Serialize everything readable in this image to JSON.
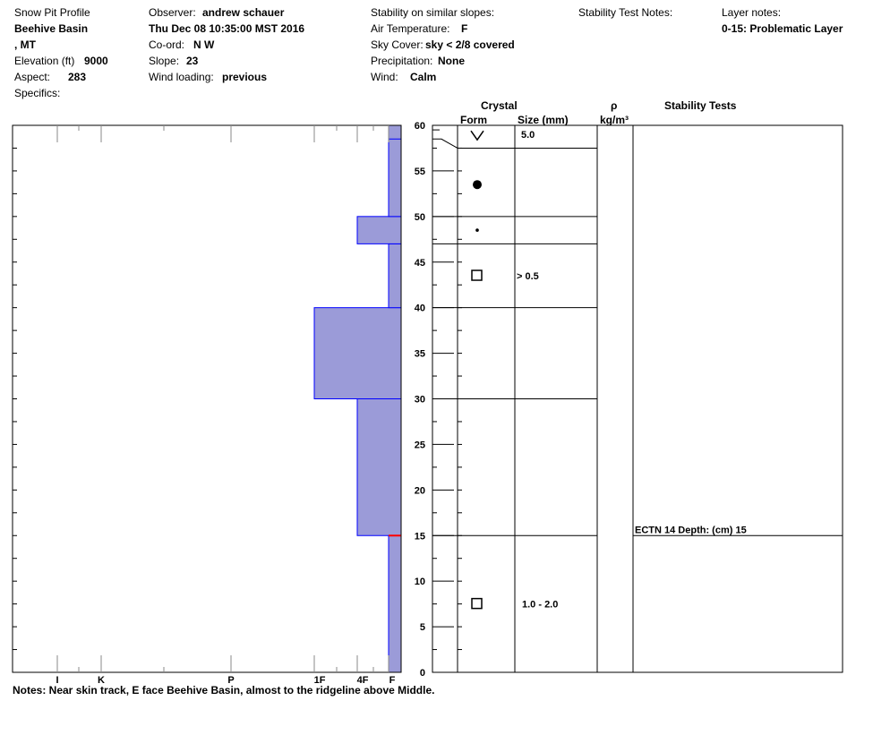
{
  "header": {
    "profile_title": "Snow Pit Profile",
    "location": "Beehive Basin",
    "state": ", MT",
    "elevation_label": "Elevation (ft)",
    "elevation_value": "9000",
    "aspect_label": "Aspect:",
    "aspect_value": "283",
    "specifics_label": "Specifics:",
    "observer_label": "Observer:",
    "observer_value": "andrew schauer",
    "datetime": "Thu Dec 08 10:35:00 MST 2016",
    "coord_label": "Co-ord:",
    "coord_value": "N  W",
    "slope_label": "Slope:",
    "slope_value": "23",
    "wind_loading_label": "Wind loading:",
    "wind_loading_value": "previous",
    "stability_label": "Stability on similar slopes:",
    "air_temp_label": "Air Temperature:",
    "air_temp_value": "F",
    "sky_label": "Sky Cover:",
    "sky_value": "sky < 2/8 covered",
    "precip_label": "Precipitation:",
    "precip_value": "None",
    "wind_label": "Wind:",
    "wind_value": "Calm",
    "stability_test_notes_label": "Stability Test Notes:",
    "layer_notes_label": "Layer notes:",
    "layer_note": "0-15: Problematic Layer"
  },
  "table_headers": {
    "crystal": "Crystal",
    "form": "Form",
    "size": "Size (mm)",
    "rho": "ρ",
    "density_unit": "kg/m³",
    "stability_tests": "Stability Tests"
  },
  "notes": "Notes:  Near skin track, E face Beehive Basin, almost to the ridgeline above Middle.",
  "chart_data": {
    "type": "bar",
    "title": "",
    "xlabel": "",
    "ylabel": "",
    "ylim": [
      0,
      60
    ],
    "y_ticks": [
      0,
      5,
      10,
      15,
      20,
      25,
      30,
      35,
      40,
      45,
      50,
      55,
      60
    ],
    "hardness_scale": [
      "F",
      "4F",
      "1F",
      "P",
      "K",
      "I"
    ],
    "hardness_tick_labels": [
      "I",
      "K",
      "P",
      "1F",
      "4F",
      "F"
    ],
    "hardness_layers": [
      {
        "from": 0,
        "to": 15,
        "hardness": "F"
      },
      {
        "from": 15,
        "to": 30,
        "hardness": "4F"
      },
      {
        "from": 30,
        "to": 40,
        "hardness": "1F"
      },
      {
        "from": 40,
        "to": 47,
        "hardness": "F"
      },
      {
        "from": 47,
        "to": 50,
        "hardness": "4F"
      },
      {
        "from": 50,
        "to": 60,
        "hardness": "F"
      }
    ],
    "layer_boundaries": [
      15,
      30,
      40,
      47,
      50,
      57.5
    ],
    "crystals": [
      {
        "depth": 59,
        "form": "new-snow",
        "size": "5.0"
      },
      {
        "depth": 53.5,
        "form": "rounded-grains",
        "size": ""
      },
      {
        "depth": 48.5,
        "form": "small-rounds",
        "size": ""
      },
      {
        "depth": 43.5,
        "form": "faceted",
        "size": "> 0.5"
      },
      {
        "depth": 7.5,
        "form": "faceted",
        "size": "1.0 - 2.0"
      }
    ],
    "stability_tests": [
      {
        "depth": 15,
        "label": "ECTN 14   Depth: (cm) 15"
      }
    ],
    "problem_depth": 15,
    "colors": {
      "fill": "#9b9bd8",
      "edge": "#0000ff",
      "problem": "#ff0000"
    }
  }
}
